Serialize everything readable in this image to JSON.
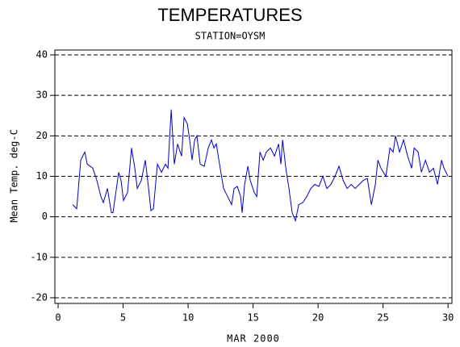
{
  "chart_data": {
    "type": "line",
    "title": "TEMPERATURES",
    "subtitle": "STATION=OYSM",
    "x_label": "MAR 2000",
    "y_label": "Mean Temp. deg-C",
    "xlim": [
      -0.25,
      30.3
    ],
    "ylim": [
      -21.4,
      41.2
    ],
    "xticks": [
      0,
      5,
      10,
      15,
      20,
      25,
      30
    ],
    "yticks": [
      -20,
      -10,
      0,
      10,
      20,
      30,
      40
    ],
    "grid": true,
    "x": [
      1.12,
      1.43,
      1.74,
      2.05,
      2.24,
      2.67,
      2.98,
      3.29,
      3.48,
      3.79,
      4.1,
      4.22,
      4.66,
      4.84,
      5.03,
      5.34,
      5.65,
      5.9,
      6.09,
      6.4,
      6.71,
      6.96,
      7.14,
      7.33,
      7.64,
      7.95,
      8.26,
      8.45,
      8.7,
      8.94,
      9.19,
      9.5,
      9.69,
      9.94,
      10.12,
      10.31,
      10.5,
      10.68,
      10.93,
      11.24,
      11.55,
      11.8,
      11.99,
      12.17,
      12.42,
      12.73,
      13.04,
      13.35,
      13.54,
      13.79,
      14.04,
      14.16,
      14.35,
      14.6,
      14.78,
      15.09,
      15.28,
      15.53,
      15.78,
      16.02,
      16.34,
      16.65,
      16.96,
      17.14,
      17.27,
      17.52,
      17.76,
      18.01,
      18.26,
      18.51,
      18.82,
      19.13,
      19.44,
      19.75,
      20.06,
      20.37,
      20.68,
      20.99,
      21.3,
      21.61,
      21.93,
      22.24,
      22.55,
      22.86,
      23.17,
      23.48,
      23.79,
      24.1,
      24.41,
      24.6,
      24.84,
      25.22,
      25.53,
      25.78,
      25.96,
      26.27,
      26.58,
      26.89,
      27.2,
      27.39,
      27.7,
      27.95,
      28.26,
      28.57,
      28.88,
      29.19,
      29.5,
      29.69,
      30.0
    ],
    "series": [
      {
        "name": "Mean Temp",
        "color": "#0000cc",
        "values": [
          3,
          2,
          14,
          16,
          13,
          12,
          9,
          5,
          3.5,
          7,
          1,
          1,
          11,
          9,
          4,
          6,
          17,
          12,
          7,
          9,
          14,
          7,
          1.5,
          2,
          13,
          11,
          13,
          12,
          26.5,
          13,
          18,
          15,
          24.5,
          23,
          19,
          14,
          19,
          20,
          13,
          12.5,
          17,
          19,
          17,
          18,
          13,
          7,
          5,
          3,
          7,
          7.5,
          5,
          1,
          8,
          12.5,
          9,
          6,
          5,
          16,
          14,
          16,
          17,
          15,
          18,
          13,
          19,
          12,
          7,
          1,
          -1,
          3,
          3.5,
          5,
          7,
          8,
          7.5,
          10,
          7,
          8,
          10,
          12.5,
          9,
          7,
          8,
          7,
          8,
          9,
          9.5,
          3,
          8,
          14,
          12,
          10,
          17,
          16,
          20,
          16,
          19,
          15,
          12,
          17,
          16,
          11,
          14,
          11,
          12,
          8,
          14,
          12,
          10
        ]
      }
    ]
  }
}
